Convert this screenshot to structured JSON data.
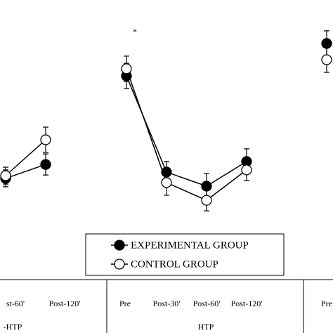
{
  "chart_data": [
    {
      "type": "line",
      "xlabel": "-HTP",
      "categories": [
        "st-60'",
        "Post-120'"
      ],
      "ylim": [
        0,
        100
      ],
      "series": [
        {
          "marker": "filled",
          "color": "#000000",
          "values": [
            28.7,
            35.3
          ],
          "errors": [
            4,
            5
          ]
        },
        {
          "marker": "open",
          "color": "#000000",
          "values": [
            30,
            47
          ],
          "errors": [
            4,
            6
          ]
        }
      ]
    },
    {
      "type": "line",
      "xlabel": "HTP",
      "categories": [
        "Pre",
        "Post-30'",
        "Post-60'",
        "Post-120'"
      ],
      "ylim": [
        0,
        100
      ],
      "annotation": "*",
      "series": [
        {
          "name": "EXPERIMENTAL GROUP",
          "marker": "filled",
          "color": "#000000",
          "values": [
            77.3,
            31.7,
            25,
            36.7
          ],
          "errors": [
            6,
            5,
            6,
            6
          ]
        },
        {
          "name": "CONTROL GROUP",
          "marker": "open",
          "color": "#000000",
          "values": [
            80.7,
            26.7,
            18.3,
            32.7
          ],
          "errors": [
            6,
            6,
            5,
            5
          ]
        }
      ]
    },
    {
      "type": "line",
      "categories": [
        "Pre"
      ],
      "ylim": [
        0,
        100
      ],
      "series": [
        {
          "marker": "filled",
          "color": "#000000",
          "values": [
            92.7
          ],
          "errors": [
            6
          ]
        },
        {
          "marker": "open",
          "color": "#000000",
          "values": [
            85
          ],
          "errors": [
            6
          ]
        }
      ]
    }
  ]
}
